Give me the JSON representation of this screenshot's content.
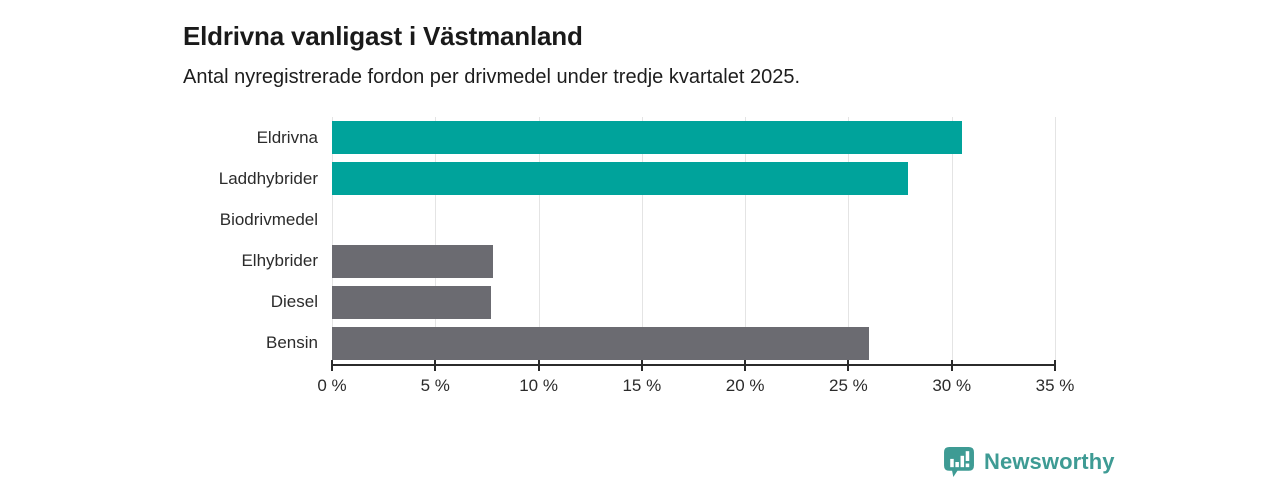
{
  "page": {
    "title": "Eldrivna vanligast i Västmanland",
    "subtitle": "Antal nyregistrerade fordon per drivmedel under tredje kvartalet 2025."
  },
  "chart_data": {
    "type": "bar",
    "orientation": "horizontal",
    "title": "Eldrivna vanligast i Västmanland",
    "subtitle": "Antal nyregistrerade fordon per drivmedel under tredje kvartalet 2025.",
    "categories": [
      "Eldrivna",
      "Laddhybrider",
      "Biodrivmedel",
      "Elhybrider",
      "Diesel",
      "Bensin"
    ],
    "values": [
      30.5,
      27.9,
      0,
      7.8,
      7.7,
      26.0
    ],
    "unit": "%",
    "bar_colors": [
      "#00a39b",
      "#00a39b",
      "#6b6b71",
      "#6b6b71",
      "#6b6b71",
      "#6b6b71"
    ],
    "highlight_color": "#00a39b",
    "default_color": "#6b6b71",
    "xlim": [
      0,
      35
    ],
    "x_ticks": [
      0,
      5,
      10,
      15,
      20,
      25,
      30,
      35
    ],
    "x_tick_labels": [
      "0 %",
      "5 %",
      "10 %",
      "15 %",
      "20 %",
      "25 %",
      "30 %",
      "35 %"
    ],
    "grid": true,
    "legend": false
  },
  "branding": {
    "logo_text": "Newsworthy",
    "logo_color": "#3e9b94"
  }
}
